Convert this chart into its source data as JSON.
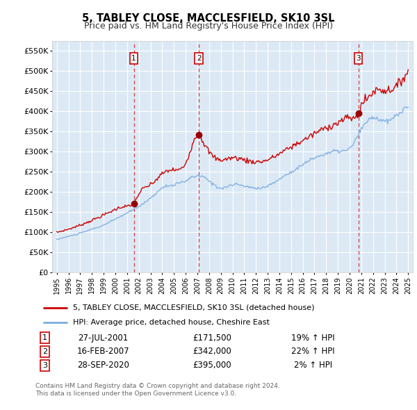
{
  "title": "5, TABLEY CLOSE, MACCLESFIELD, SK10 3SL",
  "subtitle": "Price paid vs. HM Land Registry's House Price Index (HPI)",
  "legend_line1": "5, TABLEY CLOSE, MACCLESFIELD, SK10 3SL (detached house)",
  "legend_line2": "HPI: Average price, detached house, Cheshire East",
  "footnote1": "Contains HM Land Registry data © Crown copyright and database right 2024.",
  "footnote2": "This data is licensed under the Open Government Licence v3.0.",
  "ylim": [
    0,
    575000
  ],
  "yticks": [
    0,
    50000,
    100000,
    150000,
    200000,
    250000,
    300000,
    350000,
    400000,
    450000,
    500000,
    550000
  ],
  "ytick_labels": [
    "£0",
    "£50K",
    "£100K",
    "£150K",
    "£200K",
    "£250K",
    "£300K",
    "£350K",
    "£400K",
    "£450K",
    "£500K",
    "£550K"
  ],
  "sale_info": [
    {
      "num": "1",
      "date": "27-JUL-2001",
      "price": "£171,500",
      "pct": "19% ↑ HPI",
      "year": 2001.577
    },
    {
      "num": "2",
      "date": "16-FEB-2007",
      "price": "£342,000",
      "pct": "22% ↑ HPI",
      "year": 2007.127
    },
    {
      "num": "3",
      "date": "28-SEP-2020",
      "price": "£395,000",
      "pct": "2% ↑ HPI",
      "year": 2020.745
    }
  ],
  "sale_prices": [
    171500,
    342000,
    395000
  ],
  "bg_color": "#dce9f5",
  "line_color_price": "#cc0000",
  "line_color_hpi": "#7aace0",
  "grid_color": "#ffffff",
  "panel_bg": "#dce9f5"
}
